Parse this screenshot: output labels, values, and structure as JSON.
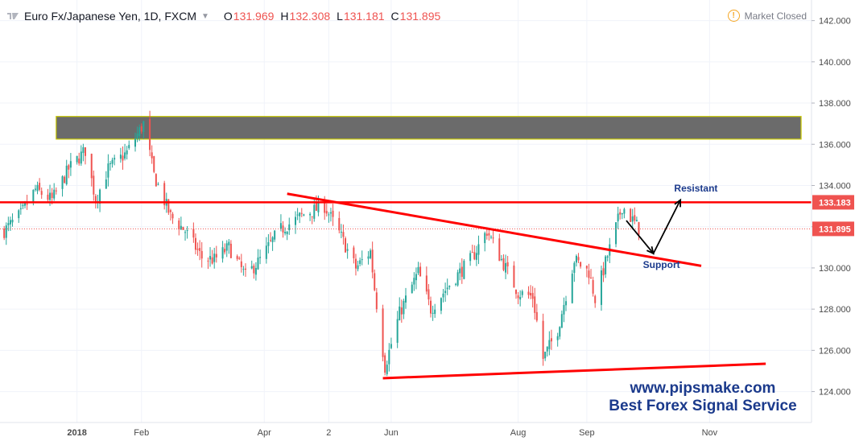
{
  "header": {
    "symbol_title": "Euro Fx/Japanese Yen, 1D, FXCM",
    "open_key": "O",
    "open": "131.969",
    "high_key": "H",
    "high": "132.308",
    "low_key": "L",
    "low": "131.181",
    "close_key": "C",
    "close": "131.895",
    "market_status": "Market Closed",
    "logo_icon": "tradingview-logo-icon",
    "status_icon": "warning-icon"
  },
  "watermark": {
    "line1": "www.pipsmake.com",
    "line2": "Best Forex Signal Service",
    "color": "#1b3a8c"
  },
  "colors": {
    "up": "#26a69a",
    "down": "#ef5350",
    "line": "#ff0000",
    "zone": "#6b6b6b",
    "zone_border": "#c8c800"
  },
  "chart_data": {
    "type": "candlestick",
    "title": "Euro Fx/Japanese Yen, 1D, FXCM",
    "y_axis": {
      "side": "right",
      "min": 122.5,
      "max": 143.0,
      "ticks": [
        "124.000",
        "126.000",
        "128.000",
        "130.000",
        "132.000",
        "134.000",
        "136.000",
        "138.000",
        "140.000",
        "142.000"
      ]
    },
    "x_axis": {
      "labels": [
        {
          "text": "2018",
          "date": "2018-01-01"
        },
        {
          "text": "Feb",
          "date": "2018-02-01"
        },
        {
          "text": "Apr",
          "date": "2018-04-01"
        },
        {
          "text": "2",
          "date": "2018-05-02"
        },
        {
          "text": "Jun",
          "date": "2018-06-01"
        },
        {
          "text": "Aug",
          "date": "2018-08-01"
        },
        {
          "text": "Sep",
          "date": "2018-09-03"
        },
        {
          "text": "Nov",
          "date": "2018-11-01"
        }
      ],
      "start": "2017-11-25",
      "end": "2018-12-20"
    },
    "price_markers": [
      {
        "value": 133.183,
        "label": "133.183",
        "style": "solid"
      },
      {
        "value": 131.895,
        "label": "131.895",
        "style": "dotted"
      }
    ],
    "price_path": [
      [
        "2017-11-27",
        131.8
      ],
      [
        "2017-12-05",
        132.6
      ],
      [
        "2017-12-12",
        133.8
      ],
      [
        "2017-12-20",
        133.3
      ],
      [
        "2017-12-28",
        134.8
      ],
      [
        "2018-01-05",
        135.7
      ],
      [
        "2018-01-10",
        133.3
      ],
      [
        "2018-01-16",
        134.8
      ],
      [
        "2018-01-25",
        135.6
      ],
      [
        "2018-02-02",
        137.0
      ],
      [
        "2018-02-07",
        134.5
      ],
      [
        "2018-02-15",
        132.5
      ],
      [
        "2018-02-22",
        131.8
      ],
      [
        "2018-03-02",
        130.5
      ],
      [
        "2018-03-08",
        130.4
      ],
      [
        "2018-03-15",
        131.0
      ],
      [
        "2018-03-23",
        129.6
      ],
      [
        "2018-03-30",
        130.4
      ],
      [
        "2018-04-08",
        131.8
      ],
      [
        "2018-04-20",
        132.6
      ],
      [
        "2018-04-30",
        133.0
      ],
      [
        "2018-05-08",
        131.5
      ],
      [
        "2018-05-15",
        130.0
      ],
      [
        "2018-05-22",
        130.8
      ],
      [
        "2018-05-24",
        129.0
      ],
      [
        "2018-05-29",
        125.2
      ],
      [
        "2018-06-05",
        127.8
      ],
      [
        "2018-06-14",
        129.8
      ],
      [
        "2018-06-20",
        128.0
      ],
      [
        "2018-06-29",
        129.2
      ],
      [
        "2018-07-10",
        130.5
      ],
      [
        "2018-07-17",
        131.8
      ],
      [
        "2018-07-25",
        130.2
      ],
      [
        "2018-08-01",
        128.8
      ],
      [
        "2018-08-08",
        128.6
      ],
      [
        "2018-08-13",
        125.6
      ],
      [
        "2018-08-20",
        127.0
      ],
      [
        "2018-08-28",
        130.4
      ],
      [
        "2018-09-04",
        129.8
      ],
      [
        "2018-09-07",
        128.5
      ],
      [
        "2018-09-13",
        130.6
      ],
      [
        "2018-09-20",
        133.0
      ],
      [
        "2018-09-28",
        131.9
      ]
    ],
    "annotations": [
      {
        "type": "zone",
        "from_date": "2017-12-22",
        "to_date": "2018-12-15",
        "y_low": 136.25,
        "y_high": 137.35
      },
      {
        "type": "hline",
        "y": 133.183,
        "label": "133.183"
      },
      {
        "type": "trendline",
        "from": [
          "2018-04-12",
          133.6
        ],
        "to": [
          "2018-10-28",
          130.1
        ]
      },
      {
        "type": "trendline",
        "from": [
          "2018-05-28",
          124.65
        ],
        "to": [
          "2018-11-28",
          125.35
        ]
      },
      {
        "type": "arrow",
        "path": [
          [
            "2018-09-22",
            132.3
          ],
          [
            "2018-10-05",
            130.7
          ],
          [
            "2018-10-18",
            133.3
          ]
        ]
      },
      {
        "type": "text",
        "text": "Resistant",
        "at": [
          "2018-10-15",
          133.7
        ]
      },
      {
        "type": "text",
        "text": "Support",
        "at": [
          "2018-09-30",
          130.0
        ]
      }
    ]
  }
}
